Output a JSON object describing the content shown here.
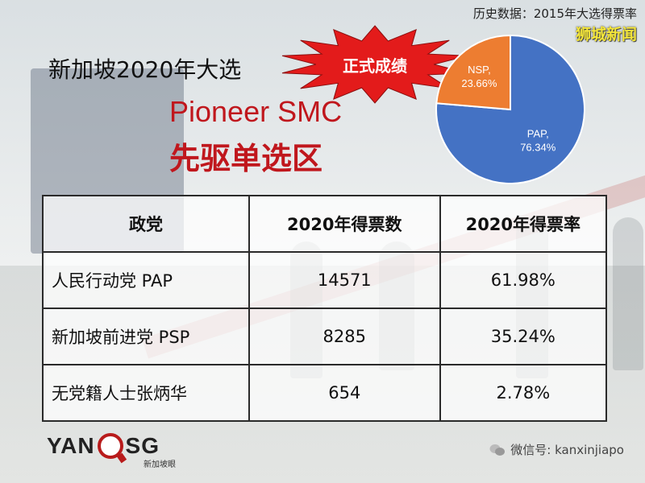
{
  "header": {
    "history_note": "历史数据：2015年大选得票率",
    "brand": "狮城新闻"
  },
  "title": {
    "main": "新加坡2020年大选",
    "burst_label": "正式成绩",
    "seat_en": "Pioneer SMC",
    "seat_zh": "先驱单选区"
  },
  "colors": {
    "pap": "#4472c4",
    "nsp": "#ed7d31",
    "accent_red": "#c0171d",
    "burst_red": "#e31b1b"
  },
  "chart_data": {
    "type": "pie",
    "title": "",
    "series": [
      {
        "values": [
          76.34,
          23.66
        ]
      }
    ],
    "slices": [
      {
        "party": "PAP",
        "value": 76.34,
        "label": "PAP,",
        "pct": "76.34%"
      },
      {
        "party": "NSP",
        "value": 23.66,
        "label": "NSP,",
        "pct": "23.66%"
      }
    ]
  },
  "table": {
    "headers": [
      "政党",
      "2020年得票数",
      "2020年得票率"
    ],
    "rows": [
      [
        "人民行动党 PAP",
        "14571",
        "61.98%"
      ],
      [
        "新加坡前进党 PSP",
        "8285",
        "35.24%"
      ],
      [
        "无党籍人士张炳华",
        "654",
        "2.78%"
      ]
    ]
  },
  "footer": {
    "logo_left": "YAN",
    "logo_right": "SG",
    "logo_sub": "新加坡眼",
    "wechat": "微信号: kanxinjiapo"
  }
}
